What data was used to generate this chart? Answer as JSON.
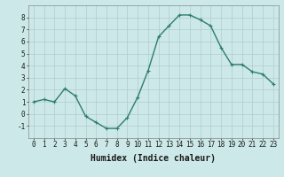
{
  "x": [
    0,
    1,
    2,
    3,
    4,
    5,
    6,
    7,
    8,
    9,
    10,
    11,
    12,
    13,
    14,
    15,
    16,
    17,
    18,
    19,
    20,
    21,
    22,
    23
  ],
  "y": [
    1.0,
    1.2,
    1.0,
    2.1,
    1.5,
    -0.2,
    -0.7,
    -1.2,
    -1.2,
    -0.3,
    1.4,
    3.6,
    6.4,
    7.3,
    8.2,
    8.2,
    7.8,
    7.3,
    5.5,
    4.1,
    4.1,
    3.5,
    3.3,
    2.5
  ],
  "line_color": "#2e7d6e",
  "marker": "+",
  "bg_color": "#cce8e8",
  "grid_color": "#b0cccc",
  "xlabel": "Humidex (Indice chaleur)",
  "ylim": [
    -2,
    9
  ],
  "xlim": [
    -0.5,
    23.5
  ],
  "yticks": [
    -1,
    0,
    1,
    2,
    3,
    4,
    5,
    6,
    7,
    8
  ],
  "xticks": [
    0,
    1,
    2,
    3,
    4,
    5,
    6,
    7,
    8,
    9,
    10,
    11,
    12,
    13,
    14,
    15,
    16,
    17,
    18,
    19,
    20,
    21,
    22,
    23
  ],
  "tick_fontsize": 5.5,
  "xlabel_fontsize": 7,
  "linewidth": 1.0,
  "markersize": 3
}
